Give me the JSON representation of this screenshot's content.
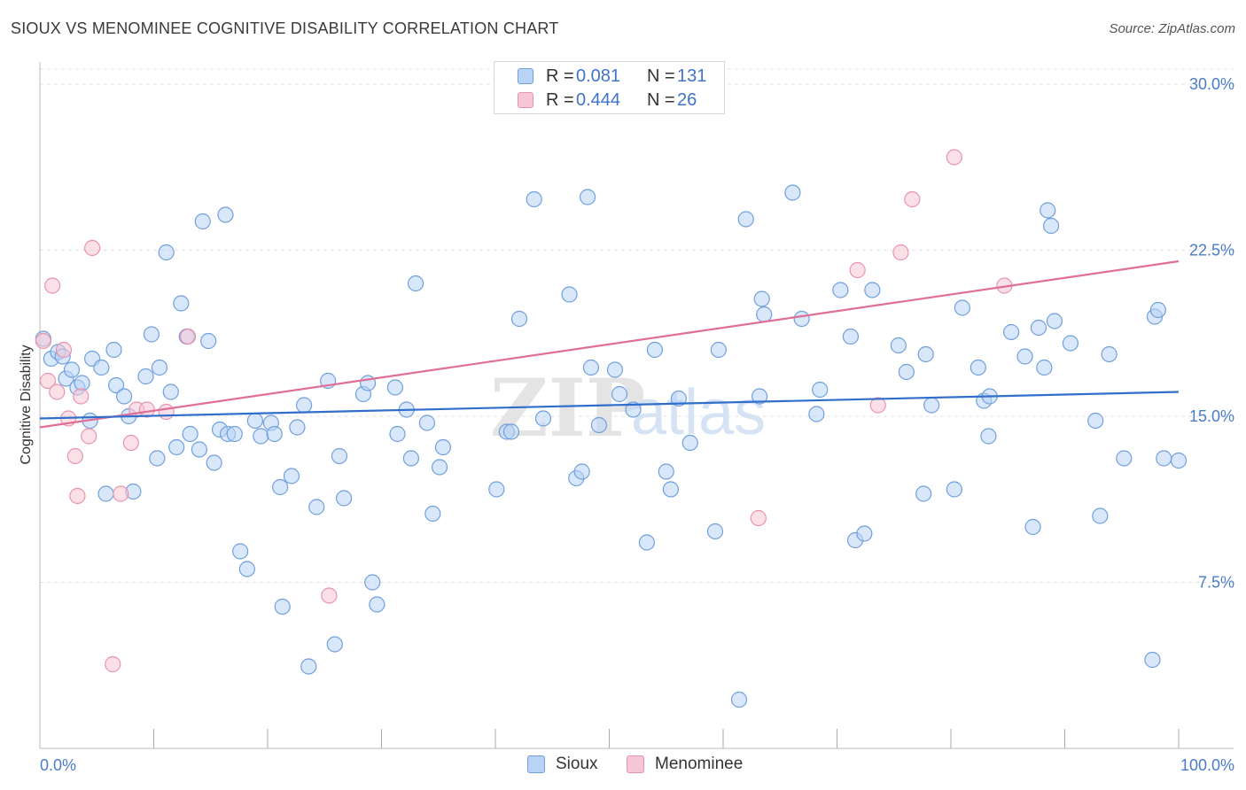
{
  "title": "SIOUX VS MENOMINEE COGNITIVE DISABILITY CORRELATION CHART",
  "source": "Source: ZipAtlas.com",
  "watermark": {
    "zip": "ZIP",
    "atlas": "atlas"
  },
  "legend_top": [
    {
      "r_label": "R =",
      "r_value": "0.081",
      "n_label": "N =",
      "n_value": "131"
    },
    {
      "r_label": "R =",
      "r_value": "0.444",
      "n_label": "N =",
      "n_value": "26"
    }
  ],
  "colors": {
    "sioux_fill": "#b8d3f5",
    "sioux_stroke": "#6f9fdc",
    "sioux_line": "#2f6fcb",
    "menominee_fill": "#f7c6d4",
    "menominee_stroke": "#e793ad",
    "menominee_line": "#e06e97"
  },
  "chart_data": {
    "type": "scatter",
    "title": "SIOUX VS MENOMINEE COGNITIVE DISABILITY CORRELATION CHART",
    "xlabel": "",
    "ylabel": "Cognitive Disability",
    "xlim": [
      0,
      100
    ],
    "ylim": [
      0,
      31
    ],
    "x_tick_labels": [
      "0.0%",
      "100.0%"
    ],
    "y_ticks": [
      7.5,
      15.0,
      22.5,
      30.0
    ],
    "y_tick_labels": [
      "7.5%",
      "15.0%",
      "22.5%",
      "30.0%"
    ],
    "grid": true,
    "legend_position": "top-center",
    "series": [
      {
        "name": "Sioux",
        "r": 0.081,
        "n": 131,
        "trend": {
          "x": [
            0,
            100
          ],
          "y": [
            14.9,
            16.1
          ]
        },
        "points": [
          [
            0.3,
            18.5
          ],
          [
            1.0,
            17.6
          ],
          [
            1.6,
            17.9
          ],
          [
            2.0,
            17.7
          ],
          [
            2.3,
            16.7
          ],
          [
            2.8,
            17.1
          ],
          [
            3.3,
            16.3
          ],
          [
            3.7,
            16.5
          ],
          [
            4.4,
            14.8
          ],
          [
            4.6,
            17.6
          ],
          [
            5.4,
            17.2
          ],
          [
            5.8,
            11.5
          ],
          [
            6.5,
            18.0
          ],
          [
            6.7,
            16.4
          ],
          [
            7.4,
            15.9
          ],
          [
            7.8,
            15.0
          ],
          [
            8.2,
            11.6
          ],
          [
            9.3,
            16.8
          ],
          [
            9.8,
            18.7
          ],
          [
            10.3,
            13.1
          ],
          [
            10.5,
            17.2
          ],
          [
            11.1,
            22.4
          ],
          [
            11.5,
            16.1
          ],
          [
            12.0,
            13.6
          ],
          [
            12.4,
            20.1
          ],
          [
            12.9,
            18.6
          ],
          [
            13.2,
            14.2
          ],
          [
            14.0,
            13.5
          ],
          [
            14.3,
            23.8
          ],
          [
            14.8,
            18.4
          ],
          [
            15.3,
            12.9
          ],
          [
            15.8,
            14.4
          ],
          [
            16.3,
            24.1
          ],
          [
            16.5,
            14.2
          ],
          [
            17.1,
            14.2
          ],
          [
            17.6,
            8.9
          ],
          [
            18.2,
            8.1
          ],
          [
            18.9,
            14.8
          ],
          [
            19.4,
            14.1
          ],
          [
            20.3,
            14.7
          ],
          [
            20.6,
            14.2
          ],
          [
            21.1,
            11.8
          ],
          [
            21.3,
            6.4
          ],
          [
            22.1,
            12.3
          ],
          [
            22.6,
            14.5
          ],
          [
            23.2,
            15.5
          ],
          [
            23.6,
            3.7
          ],
          [
            24.3,
            10.9
          ],
          [
            25.3,
            16.6
          ],
          [
            25.9,
            4.7
          ],
          [
            26.3,
            13.2
          ],
          [
            26.7,
            11.3
          ],
          [
            28.4,
            16.0
          ],
          [
            28.8,
            16.5
          ],
          [
            29.2,
            7.5
          ],
          [
            29.6,
            6.5
          ],
          [
            31.2,
            16.3
          ],
          [
            31.4,
            14.2
          ],
          [
            32.2,
            15.3
          ],
          [
            32.6,
            13.1
          ],
          [
            33.0,
            21.0
          ],
          [
            34.0,
            14.7
          ],
          [
            34.5,
            10.6
          ],
          [
            35.1,
            12.7
          ],
          [
            35.4,
            13.6
          ],
          [
            40.1,
            11.7
          ],
          [
            41.0,
            14.3
          ],
          [
            41.4,
            14.3
          ],
          [
            42.1,
            19.4
          ],
          [
            43.4,
            24.8
          ],
          [
            44.2,
            14.9
          ],
          [
            46.5,
            20.5
          ],
          [
            47.1,
            12.2
          ],
          [
            47.6,
            12.5
          ],
          [
            48.1,
            24.9
          ],
          [
            48.4,
            17.2
          ],
          [
            49.1,
            14.6
          ],
          [
            50.5,
            17.1
          ],
          [
            50.9,
            16.0
          ],
          [
            52.1,
            15.3
          ],
          [
            53.3,
            9.3
          ],
          [
            54.0,
            18.0
          ],
          [
            55.0,
            12.5
          ],
          [
            55.4,
            11.7
          ],
          [
            56.1,
            15.8
          ],
          [
            57.1,
            13.8
          ],
          [
            59.3,
            9.8
          ],
          [
            59.6,
            18.0
          ],
          [
            61.4,
            2.2
          ],
          [
            62.0,
            23.9
          ],
          [
            63.2,
            15.9
          ],
          [
            63.4,
            20.3
          ],
          [
            63.6,
            19.6
          ],
          [
            66.1,
            25.1
          ],
          [
            66.9,
            19.4
          ],
          [
            68.2,
            15.1
          ],
          [
            68.5,
            16.2
          ],
          [
            70.3,
            20.7
          ],
          [
            71.2,
            18.6
          ],
          [
            71.6,
            9.4
          ],
          [
            72.4,
            9.7
          ],
          [
            73.1,
            20.7
          ],
          [
            75.4,
            18.2
          ],
          [
            76.1,
            17.0
          ],
          [
            77.6,
            11.5
          ],
          [
            77.8,
            17.8
          ],
          [
            78.3,
            15.5
          ],
          [
            80.3,
            11.7
          ],
          [
            81.0,
            19.9
          ],
          [
            82.4,
            17.2
          ],
          [
            82.9,
            15.7
          ],
          [
            83.3,
            14.1
          ],
          [
            83.4,
            15.9
          ],
          [
            85.3,
            18.8
          ],
          [
            86.5,
            17.7
          ],
          [
            87.2,
            10.0
          ],
          [
            87.7,
            19.0
          ],
          [
            88.2,
            17.2
          ],
          [
            88.5,
            24.3
          ],
          [
            88.8,
            23.6
          ],
          [
            89.1,
            19.3
          ],
          [
            90.5,
            18.3
          ],
          [
            92.7,
            14.8
          ],
          [
            93.1,
            10.5
          ],
          [
            93.9,
            17.8
          ],
          [
            95.2,
            13.1
          ],
          [
            97.7,
            4.0
          ],
          [
            97.9,
            19.5
          ],
          [
            98.2,
            19.8
          ],
          [
            98.7,
            13.1
          ],
          [
            100.0,
            13.0
          ]
        ]
      },
      {
        "name": "Menominee",
        "r": 0.444,
        "n": 26,
        "trend": {
          "x": [
            0,
            100
          ],
          "y": [
            14.5,
            22.0
          ]
        },
        "points": [
          [
            0.3,
            18.4
          ],
          [
            0.7,
            16.6
          ],
          [
            1.1,
            20.9
          ],
          [
            1.5,
            16.1
          ],
          [
            2.1,
            18.0
          ],
          [
            2.5,
            14.9
          ],
          [
            3.1,
            13.2
          ],
          [
            3.3,
            11.4
          ],
          [
            3.6,
            15.9
          ],
          [
            4.3,
            14.1
          ],
          [
            4.6,
            22.6
          ],
          [
            6.4,
            3.8
          ],
          [
            7.1,
            11.5
          ],
          [
            8.0,
            13.8
          ],
          [
            8.5,
            15.3
          ],
          [
            9.4,
            15.3
          ],
          [
            11.1,
            15.2
          ],
          [
            13.0,
            18.6
          ],
          [
            25.4,
            6.9
          ],
          [
            63.1,
            10.4
          ],
          [
            71.8,
            21.6
          ],
          [
            73.6,
            15.5
          ],
          [
            75.6,
            22.4
          ],
          [
            76.6,
            24.8
          ],
          [
            80.3,
            26.7
          ],
          [
            84.7,
            20.9
          ]
        ]
      }
    ]
  },
  "legend_bottom": [
    {
      "label": "Sioux"
    },
    {
      "label": "Menominee"
    }
  ]
}
